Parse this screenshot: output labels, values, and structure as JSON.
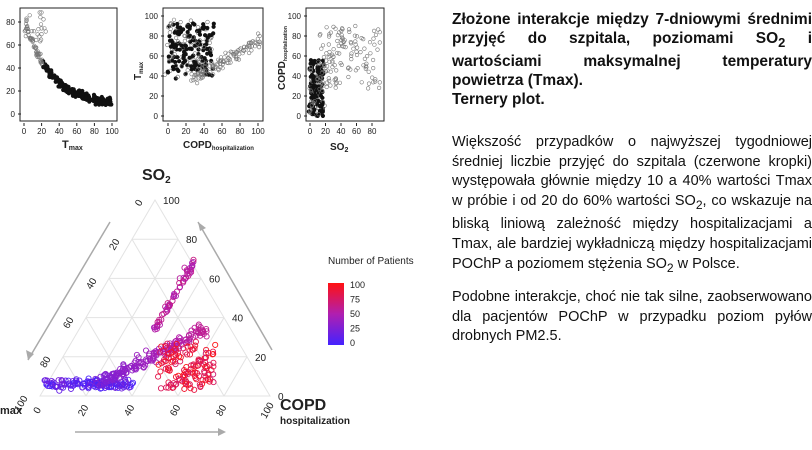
{
  "charts": {
    "panel1": {
      "xlabel_main": "T",
      "xlabel_sub": "max",
      "ylabel": "",
      "xticks": [
        "0",
        "20",
        "40",
        "60",
        "80",
        "100"
      ],
      "yticks": [
        "0",
        "20",
        "40",
        "60",
        "80"
      ]
    },
    "panel2": {
      "xlabel_main": "COPD",
      "xlabel_sub": "hospitalization",
      "ylabel_main": "T",
      "ylabel_sub": "max",
      "xticks": [
        "0",
        "20",
        "40",
        "60",
        "80",
        "100"
      ],
      "yticks": [
        "0",
        "20",
        "40",
        "60",
        "80",
        "100"
      ]
    },
    "panel3": {
      "xlabel_main": "SO",
      "xlabel_sub": "2",
      "ylabel_main": "COPD",
      "ylabel_sub": "hospitalization",
      "xticks": [
        "0",
        "20",
        "40",
        "60",
        "80"
      ],
      "yticks": [
        "0",
        "20",
        "40",
        "60",
        "80",
        "100"
      ]
    },
    "ternary": {
      "top_label_main": "SO",
      "top_label_sub": "2",
      "right_label_main": "COPD",
      "right_label_sub": "hospitalization",
      "left_label": "max",
      "left_ticks": [
        "0",
        "20",
        "40",
        "60",
        "80",
        "100"
      ],
      "right_ticks": [
        "100",
        "80",
        "60",
        "40",
        "20",
        "0"
      ],
      "bottom_ticks": [
        "0",
        "20",
        "40",
        "60",
        "80",
        "100"
      ]
    },
    "legend": {
      "title": "Number of Patients",
      "ticks": [
        "100",
        "75",
        "50",
        "25",
        "0"
      ],
      "color_high": "#ff1111",
      "color_mid": "#b01fb0",
      "color_low": "#4422ff"
    }
  },
  "text": {
    "title": "Złożone interakcje między 7-dniowymi średnimi przyjęć do szpitala, poziomami SO",
    "title_sub": "2",
    "title_cont": "i wartościami maksymalnej temperatury powietrza (Tmax).",
    "subtitle": "Ternery plot.",
    "p1_a": "Większość przypadków o najwyższej tygodniowej średniej liczbie przyjęć do szpitala (czerwone kropki) występowała głównie między 10 a 40% wartości Tmax w próbie i od 20 do 60% wartości SO",
    "p1_sub1": "2",
    "p1_b": ", co wskazuje na bliską liniową zależność między hospitalizacjami a Tmax, ale bardziej wykładniczą między hospitalizacjami POChP a poziomem stężenia SO",
    "p1_sub2": "2",
    "p1_c": " w Polsce.",
    "p2": "Podobne interakcje, choć nie tak silne, zaobserwowano dla pacjentów POChP w przypadku poziom pyłów drobnych PM2.5."
  }
}
